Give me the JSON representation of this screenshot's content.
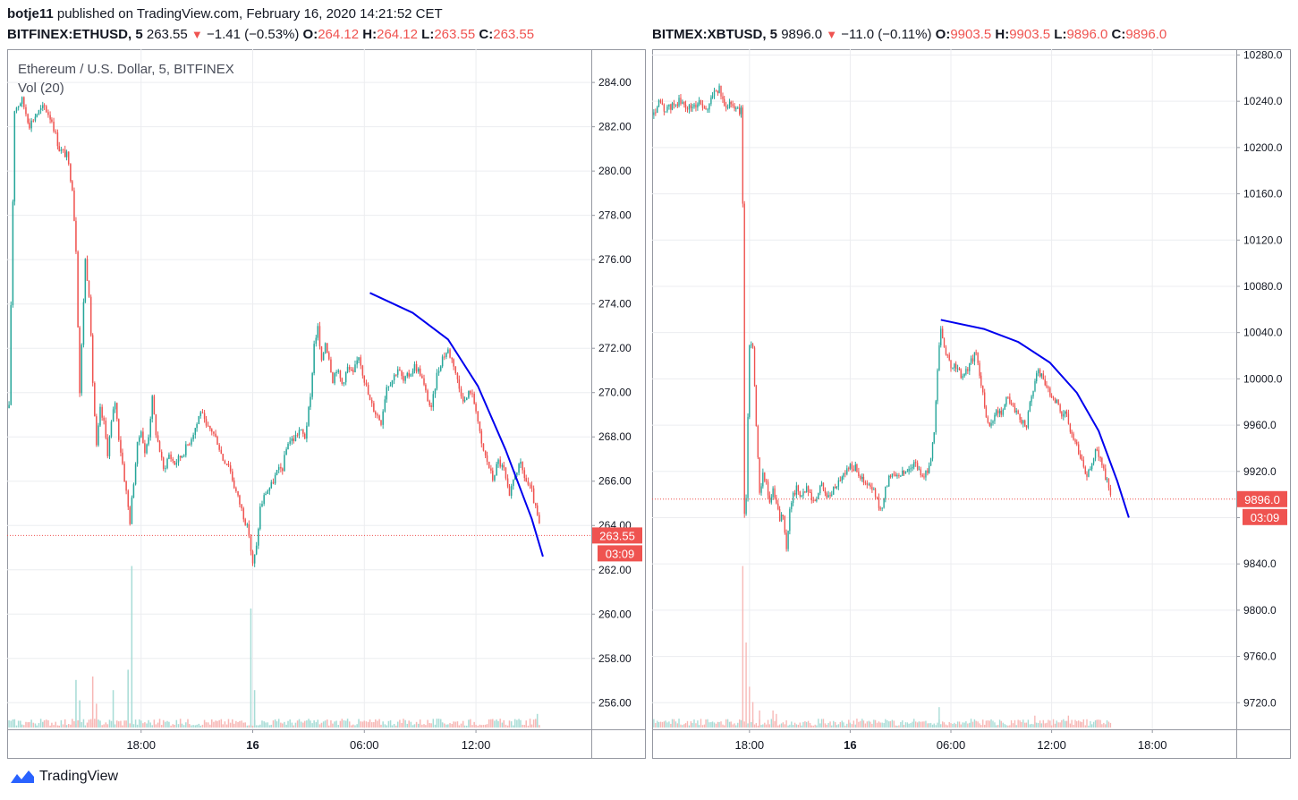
{
  "publish": {
    "author": "botje11",
    "text": "published on TradingView.com, February 16, 2020 14:21:52 CET"
  },
  "footer": {
    "brand": "TradingView"
  },
  "colors": {
    "up": "#26a69a",
    "down": "#ef5350",
    "arc": "#0000ee",
    "grid": "#ecedf0"
  },
  "left_header": {
    "symbol": "BITFINEX:ETHUSD, 5",
    "last": "263.55",
    "change": "−1.41 (−0.53%)",
    "o_label": "O:",
    "o": "264.12",
    "h_label": "H:",
    "h": "264.12",
    "l_label": "L:",
    "l": "263.55",
    "c_label": "C:",
    "c": "263.55"
  },
  "right_header": {
    "symbol": "BITMEX:XBTUSD, 5",
    "last": "9896.0",
    "change": "−11.0 (−0.11%)",
    "o_label": "O:",
    "o": "9903.5",
    "h_label": "H:",
    "h": "9903.5",
    "l_label": "L:",
    "l": "9896.0",
    "c_label": "C:",
    "c": "9896.0"
  },
  "chart_data": [
    {
      "type": "candlestick",
      "title": "Ethereum / U.S. Dollar, 5, BITFINEX",
      "indicator": "Vol (20)",
      "ylim": [
        254.8,
        285.5
      ],
      "yticks": [
        "284.00",
        "282.00",
        "280.00",
        "278.00",
        "276.00",
        "274.00",
        "272.00",
        "270.00",
        "268.00",
        "266.00",
        "264.00",
        "262.00",
        "260.00",
        "258.00",
        "256.00"
      ],
      "xticks": [
        {
          "label": "18:00",
          "x": -6
        },
        {
          "label": "16",
          "x": 0
        },
        {
          "label": "06:00",
          "x": 6
        },
        {
          "label": "12:00",
          "x": 12
        }
      ],
      "x_axis": "hours from Feb 16 00:00",
      "xlim": [
        -13.2,
        18.2
      ],
      "price_line": 263.55,
      "price_badge": "263.55",
      "countdown": "03:09",
      "close_path": [
        [
          -13.1,
          269.3
        ],
        [
          -12.8,
          282.8
        ],
        [
          -12.4,
          283.2
        ],
        [
          -12.0,
          282.1
        ],
        [
          -11.6,
          282.6
        ],
        [
          -11.2,
          282.9
        ],
        [
          -10.8,
          282.3
        ],
        [
          -10.4,
          281.0
        ],
        [
          -10.0,
          280.7
        ],
        [
          -9.7,
          279.3
        ],
        [
          -9.5,
          276.5
        ],
        [
          -9.3,
          270.0
        ],
        [
          -9.0,
          276.0
        ],
        [
          -8.8,
          274.5
        ],
        [
          -8.6,
          270.5
        ],
        [
          -8.4,
          267.5
        ],
        [
          -8.2,
          269.2
        ],
        [
          -8.0,
          268.6
        ],
        [
          -7.8,
          267.3
        ],
        [
          -7.6,
          268.6
        ],
        [
          -7.4,
          269.6
        ],
        [
          -7.2,
          268.0
        ],
        [
          -7.0,
          266.8
        ],
        [
          -6.8,
          265.5
        ],
        [
          -6.6,
          264.2
        ],
        [
          -6.4,
          266.0
        ],
        [
          -6.2,
          267.6
        ],
        [
          -6.0,
          268.4
        ],
        [
          -5.8,
          267.2
        ],
        [
          -5.6,
          268.1
        ],
        [
          -5.4,
          269.7
        ],
        [
          -5.2,
          268.2
        ],
        [
          -5.0,
          267.4
        ],
        [
          -4.8,
          266.5
        ],
        [
          -4.5,
          267.2
        ],
        [
          -4.2,
          266.8
        ],
        [
          -3.8,
          267.2
        ],
        [
          -3.4,
          267.8
        ],
        [
          -3.0,
          268.6
        ],
        [
          -2.8,
          269.2
        ],
        [
          -2.5,
          268.4
        ],
        [
          -2.2,
          268.3
        ],
        [
          -1.9,
          267.8
        ],
        [
          -1.6,
          267.0
        ],
        [
          -1.3,
          266.8
        ],
        [
          -1.0,
          265.8
        ],
        [
          -0.7,
          265.0
        ],
        [
          -0.4,
          264.2
        ],
        [
          -0.2,
          263.6
        ],
        [
          0.0,
          262.2
        ],
        [
          0.2,
          263.0
        ],
        [
          0.4,
          264.8
        ],
        [
          0.7,
          265.5
        ],
        [
          1.0,
          265.8
        ],
        [
          1.3,
          266.4
        ],
        [
          1.6,
          266.6
        ],
        [
          1.9,
          267.8
        ],
        [
          2.2,
          267.9
        ],
        [
          2.5,
          268.3
        ],
        [
          2.8,
          268.0
        ],
        [
          3.1,
          269.7
        ],
        [
          3.3,
          272.2
        ],
        [
          3.5,
          272.9
        ],
        [
          3.7,
          271.3
        ],
        [
          3.9,
          272.3
        ],
        [
          4.1,
          271.6
        ],
        [
          4.3,
          270.6
        ],
        [
          4.5,
          271.1
        ],
        [
          4.8,
          270.4
        ],
        [
          5.1,
          271.1
        ],
        [
          5.4,
          270.8
        ],
        [
          5.7,
          271.7
        ],
        [
          6.0,
          270.6
        ],
        [
          6.3,
          269.6
        ],
        [
          6.6,
          269.1
        ],
        [
          6.9,
          268.7
        ],
        [
          7.2,
          270.3
        ],
        [
          7.5,
          270.6
        ],
        [
          7.8,
          271.1
        ],
        [
          8.1,
          270.5
        ],
        [
          8.4,
          270.8
        ],
        [
          8.7,
          271.2
        ],
        [
          9.0,
          270.9
        ],
        [
          9.3,
          270.0
        ],
        [
          9.6,
          269.2
        ],
        [
          9.9,
          270.8
        ],
        [
          10.2,
          271.6
        ],
        [
          10.5,
          271.9
        ],
        [
          10.8,
          271.3
        ],
        [
          11.1,
          270.2
        ],
        [
          11.4,
          269.6
        ],
        [
          11.7,
          270.1
        ],
        [
          12.0,
          269.3
        ],
        [
          12.3,
          267.6
        ],
        [
          12.6,
          266.9
        ],
        [
          12.9,
          266.1
        ],
        [
          13.2,
          266.9
        ],
        [
          13.5,
          266.5
        ],
        [
          13.8,
          265.2
        ],
        [
          14.1,
          266.4
        ],
        [
          14.4,
          266.7
        ],
        [
          14.7,
          266.0
        ],
        [
          15.0,
          265.5
        ],
        [
          15.3,
          264.4
        ],
        [
          15.5,
          263.6
        ]
      ],
      "volume_spikes": [
        {
          "x": -9.5,
          "v": 0.28
        },
        {
          "x": -9.3,
          "v": 0.16
        },
        {
          "x": -8.6,
          "v": 0.3
        },
        {
          "x": -8.4,
          "v": 0.14
        },
        {
          "x": -7.5,
          "v": 0.22
        },
        {
          "x": -6.7,
          "v": 0.34
        },
        {
          "x": -6.5,
          "v": 0.95
        },
        {
          "x": -0.1,
          "v": 0.7
        },
        {
          "x": 0.1,
          "v": 0.22
        },
        {
          "x": 15.3,
          "v": 0.08
        }
      ],
      "arc": [
        [
          6.3,
          274.5
        ],
        [
          8.6,
          273.6
        ],
        [
          10.5,
          272.4
        ],
        [
          12.1,
          270.3
        ],
        [
          13.6,
          267.4
        ],
        [
          15.0,
          264.3
        ],
        [
          15.6,
          262.6
        ]
      ]
    },
    {
      "type": "candlestick",
      "title": "",
      "ylim": [
        9697,
        10285
      ],
      "yticks": [
        "10280.0",
        "10240.0",
        "10200.0",
        "10160.0",
        "10120.0",
        "10080.0",
        "10040.0",
        "10000.0",
        "9960.0",
        "9920.0",
        "9880.0",
        "9840.0",
        "9800.0",
        "9760.0",
        "9720.0"
      ],
      "xticks": [
        {
          "label": "18:00",
          "x": -6
        },
        {
          "label": "16",
          "x": 0
        },
        {
          "label": "06:00",
          "x": 6
        },
        {
          "label": "12:00",
          "x": 12
        },
        {
          "label": "18:00",
          "x": 18
        }
      ],
      "x_axis": "hours from Feb 16 00:00",
      "xlim": [
        -11.8,
        23.0
      ],
      "price_line": 9896.0,
      "price_badge": "9896.0",
      "countdown": "03:09",
      "close_path": [
        [
          -11.7,
          10228
        ],
        [
          -11.4,
          10238
        ],
        [
          -11.0,
          10232
        ],
        [
          -10.6,
          10236
        ],
        [
          -10.2,
          10240
        ],
        [
          -9.8,
          10235
        ],
        [
          -9.4,
          10234
        ],
        [
          -9.0,
          10240
        ],
        [
          -8.6,
          10230
        ],
        [
          -8.2,
          10247
        ],
        [
          -7.8,
          10250
        ],
        [
          -7.5,
          10236
        ],
        [
          -7.1,
          10240
        ],
        [
          -6.8,
          10233
        ],
        [
          -6.5,
          10232
        ],
        [
          -6.4,
          10150
        ],
        [
          -6.3,
          9880
        ],
        [
          -6.2,
          9900
        ],
        [
          -6.0,
          10030
        ],
        [
          -5.8,
          10030
        ],
        [
          -5.6,
          9960
        ],
        [
          -5.4,
          9900
        ],
        [
          -5.2,
          9920
        ],
        [
          -5.0,
          9910
        ],
        [
          -4.8,
          9890
        ],
        [
          -4.6,
          9905
        ],
        [
          -4.4,
          9890
        ],
        [
          -4.2,
          9880
        ],
        [
          -4.0,
          9880
        ],
        [
          -3.8,
          9850
        ],
        [
          -3.6,
          9890
        ],
        [
          -3.4,
          9900
        ],
        [
          -3.2,
          9905
        ],
        [
          -2.9,
          9900
        ],
        [
          -2.6,
          9905
        ],
        [
          -2.3,
          9895
        ],
        [
          -2.0,
          9895
        ],
        [
          -1.7,
          9910
        ],
        [
          -1.4,
          9898
        ],
        [
          -1.1,
          9900
        ],
        [
          -0.8,
          9910
        ],
        [
          -0.4,
          9918
        ],
        [
          0.0,
          9925
        ],
        [
          0.4,
          9922
        ],
        [
          0.8,
          9910
        ],
        [
          1.2,
          9906
        ],
        [
          1.5,
          9900
        ],
        [
          1.8,
          9885
        ],
        [
          2.1,
          9905
        ],
        [
          2.4,
          9918
        ],
        [
          2.8,
          9918
        ],
        [
          3.2,
          9918
        ],
        [
          3.5,
          9922
        ],
        [
          3.8,
          9928
        ],
        [
          4.1,
          9920
        ],
        [
          4.4,
          9915
        ],
        [
          4.7,
          9922
        ],
        [
          5.0,
          9955
        ],
        [
          5.2,
          10010
        ],
        [
          5.4,
          10040
        ],
        [
          5.6,
          10030
        ],
        [
          5.8,
          10018
        ],
        [
          6.0,
          10008
        ],
        [
          6.3,
          10012
        ],
        [
          6.6,
          10002
        ],
        [
          6.9,
          10006
        ],
        [
          7.2,
          10015
        ],
        [
          7.5,
          10022
        ],
        [
          7.8,
          9995
        ],
        [
          8.1,
          9968
        ],
        [
          8.4,
          9960
        ],
        [
          8.7,
          9970
        ],
        [
          9.0,
          9972
        ],
        [
          9.3,
          9985
        ],
        [
          9.6,
          9980
        ],
        [
          9.9,
          9970
        ],
        [
          10.2,
          9962
        ],
        [
          10.5,
          9960
        ],
        [
          10.8,
          9985
        ],
        [
          11.1,
          10005
        ],
        [
          11.4,
          10005
        ],
        [
          11.7,
          9992
        ],
        [
          12.0,
          9985
        ],
        [
          12.3,
          9980
        ],
        [
          12.6,
          9970
        ],
        [
          12.9,
          9968
        ],
        [
          13.2,
          9950
        ],
        [
          13.5,
          9942
        ],
        [
          13.8,
          9930
        ],
        [
          14.1,
          9915
        ],
        [
          14.4,
          9930
        ],
        [
          14.7,
          9940
        ],
        [
          15.0,
          9925
        ],
        [
          15.3,
          9910
        ],
        [
          15.6,
          9896
        ]
      ],
      "volume_spikes": [
        {
          "x": -6.4,
          "v": 0.95
        },
        {
          "x": -6.2,
          "v": 0.5
        },
        {
          "x": -6.0,
          "v": 0.24
        },
        {
          "x": -5.8,
          "v": 0.15
        },
        {
          "x": -5.4,
          "v": 0.1
        },
        {
          "x": -4.6,
          "v": 0.1
        },
        {
          "x": -4.4,
          "v": 0.08
        },
        {
          "x": 5.3,
          "v": 0.12
        },
        {
          "x": 11.0,
          "v": 0.07
        },
        {
          "x": 13.0,
          "v": 0.07
        }
      ],
      "arc": [
        [
          5.4,
          10051
        ],
        [
          8.0,
          10043
        ],
        [
          10.0,
          10032
        ],
        [
          11.9,
          10014
        ],
        [
          13.5,
          9988
        ],
        [
          14.8,
          9955
        ],
        [
          15.9,
          9912
        ],
        [
          16.6,
          9880
        ]
      ]
    }
  ]
}
